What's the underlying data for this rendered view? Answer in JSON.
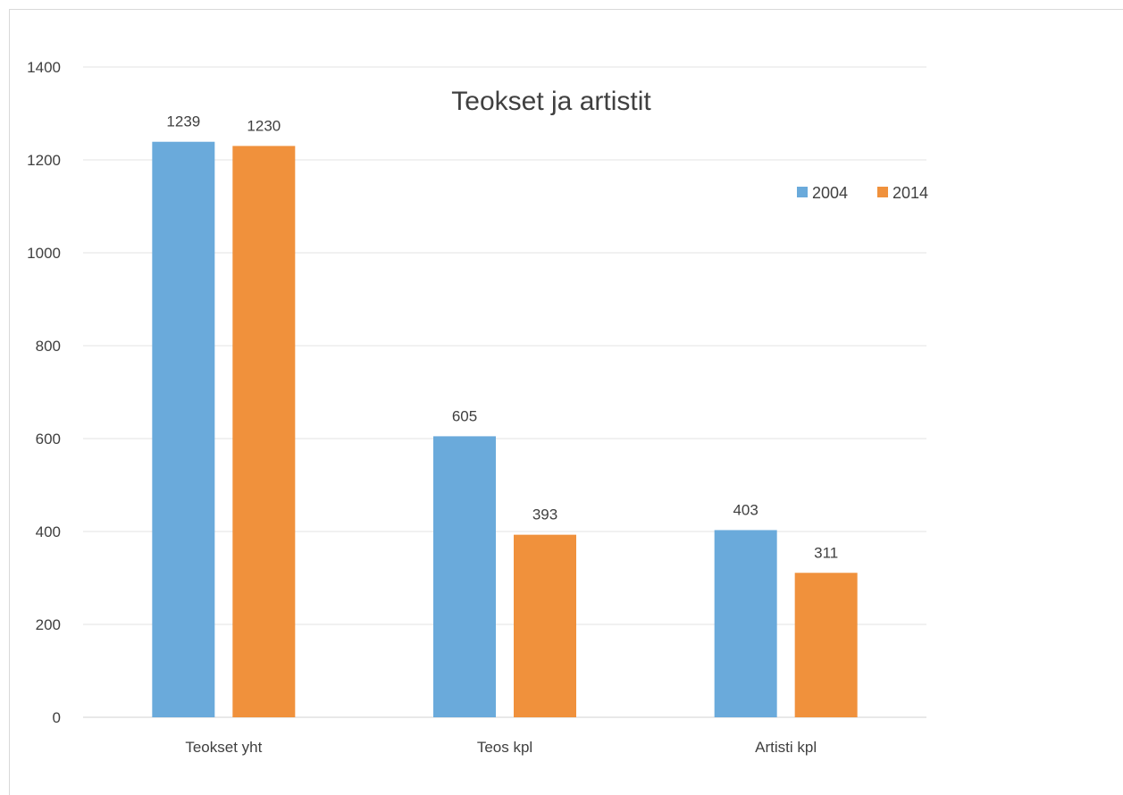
{
  "chart_data": {
    "type": "bar",
    "title": "Teokset ja artistit",
    "categories": [
      "Teokset yht",
      "Teos kpl",
      "Artisti kpl"
    ],
    "series": [
      {
        "name": "2004",
        "values": [
          1239,
          605,
          403
        ],
        "color": "#6aaadb"
      },
      {
        "name": "2014",
        "values": [
          1230,
          393,
          311
        ],
        "color": "#f0913c"
      }
    ],
    "ylim": [
      0,
      1400
    ],
    "yticks": [
      0,
      200,
      400,
      600,
      800,
      1000,
      1200,
      1400
    ],
    "xlabel": "",
    "ylabel": "",
    "grid": true,
    "legend_position": "top-right"
  }
}
